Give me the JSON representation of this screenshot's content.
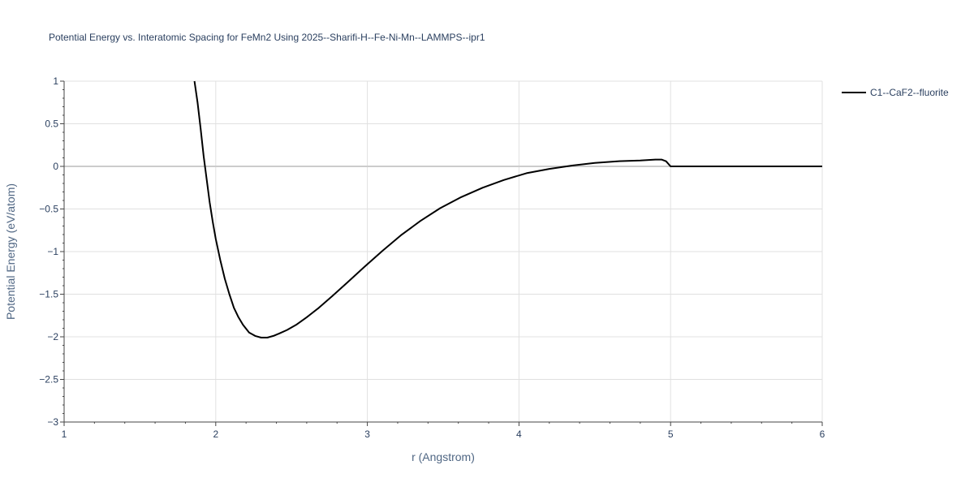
{
  "chart_data": {
    "type": "line",
    "title": "Potential Energy vs. Interatomic Spacing for FeMn2 Using 2025--Sharifi-H--Fe-Ni-Mn--LAMMPS--ipr1",
    "xlabel": "r (Angstrom)",
    "ylabel": "Potential Energy (eV/atom)",
    "xlim": [
      1,
      6
    ],
    "ylim": [
      -3,
      1
    ],
    "xticks": [
      1,
      2,
      3,
      4,
      5,
      6
    ],
    "xtick_labels": [
      "1",
      "2",
      "3",
      "4",
      "5",
      "6"
    ],
    "yticks": [
      1,
      0.5,
      0,
      -0.5,
      -1,
      -1.5,
      -2,
      -2.5,
      -3
    ],
    "ytick_labels": [
      "1",
      "0.5",
      "0",
      "−0.5",
      "−1",
      "−1.5",
      "−2",
      "−2.5",
      "−3"
    ],
    "grid": true,
    "legend_position": "top-right",
    "series": [
      {
        "name": "C1--CaF2--fluorite",
        "color": "#000000",
        "x": [
          1.86,
          1.88,
          1.9,
          1.92,
          1.94,
          1.96,
          1.98,
          2.0,
          2.03,
          2.06,
          2.09,
          2.12,
          2.15,
          2.18,
          2.22,
          2.26,
          2.3,
          2.34,
          2.38,
          2.42,
          2.47,
          2.53,
          2.6,
          2.68,
          2.77,
          2.87,
          2.98,
          3.1,
          3.22,
          3.35,
          3.48,
          3.62,
          3.76,
          3.9,
          4.05,
          4.2,
          4.35,
          4.5,
          4.65,
          4.8,
          4.9,
          4.94,
          4.97,
          5.0,
          5.1,
          5.5,
          6.0
        ],
        "y": [
          1.0,
          0.75,
          0.45,
          0.12,
          -0.15,
          -0.42,
          -0.65,
          -0.85,
          -1.1,
          -1.32,
          -1.5,
          -1.66,
          -1.77,
          -1.86,
          -1.95,
          -1.99,
          -2.01,
          -2.01,
          -1.99,
          -1.96,
          -1.92,
          -1.86,
          -1.77,
          -1.66,
          -1.52,
          -1.36,
          -1.18,
          -0.99,
          -0.81,
          -0.64,
          -0.49,
          -0.36,
          -0.25,
          -0.16,
          -0.08,
          -0.03,
          0.01,
          0.04,
          0.06,
          0.07,
          0.08,
          0.08,
          0.06,
          0.0,
          0.0,
          0.0,
          0.0
        ]
      }
    ]
  }
}
